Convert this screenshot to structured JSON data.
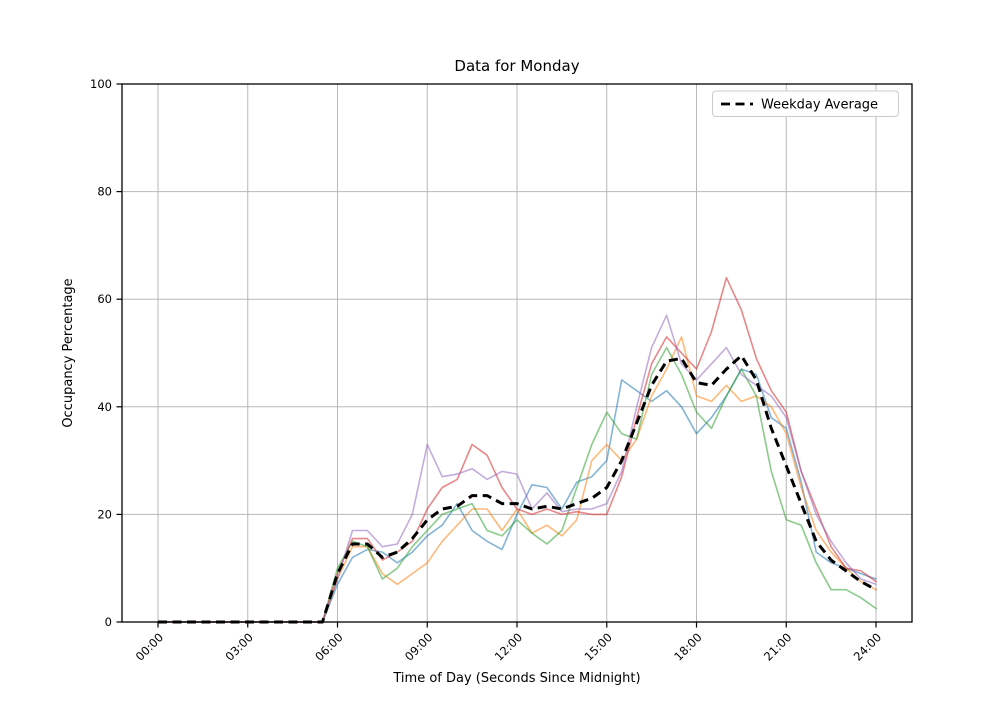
{
  "window": {
    "background": "#ffffff"
  },
  "chart_data": {
    "type": "line",
    "title": "Data for Monday",
    "xlabel": "Time of Day (Seconds Since Midnight)",
    "ylabel": "Occupancy Percentage",
    "ylim": [
      0,
      100
    ],
    "xlim_hours": [
      0,
      24
    ],
    "grid": true,
    "grid_color": "#b8b8b8",
    "spine_color": "#000000",
    "y_ticks": [
      0,
      20,
      40,
      60,
      80,
      100
    ],
    "x_tick_hours": [
      0,
      3,
      6,
      9,
      12,
      15,
      18,
      21,
      24
    ],
    "x_tick_labels": [
      "00:00",
      "03:00",
      "06:00",
      "09:00",
      "12:00",
      "15:00",
      "18:00",
      "21:00",
      "24:00"
    ],
    "sample_interval_hours": 0.5,
    "legend": {
      "label": "Weekday Average",
      "position": "upper right"
    },
    "series": [
      {
        "name": "line-1",
        "color": "#1f77b4",
        "alpha": 0.55,
        "width": 1.6,
        "values": [
          0,
          0,
          0,
          0,
          0,
          0,
          0,
          0,
          0,
          0,
          0,
          0,
          7,
          12,
          13.5,
          13,
          11,
          13,
          16,
          18,
          22,
          17,
          15,
          13.5,
          20,
          25.5,
          25,
          21,
          26,
          27,
          30,
          45,
          43,
          41,
          43,
          40,
          35,
          38,
          42,
          47,
          46,
          38,
          36,
          26,
          13,
          11,
          10,
          9,
          8
        ]
      },
      {
        "name": "line-2",
        "color": "#ff7f0e",
        "alpha": 0.55,
        "width": 1.6,
        "values": [
          0,
          0,
          0,
          0,
          0,
          0,
          0,
          0,
          0,
          0,
          0,
          0,
          8,
          14,
          14,
          9,
          7,
          9,
          11,
          15,
          18,
          21,
          21,
          17,
          21,
          16.5,
          18,
          16,
          19,
          30,
          33,
          30,
          34,
          42,
          47,
          53,
          42,
          41,
          44,
          41,
          42,
          40,
          35,
          25,
          17,
          13,
          10,
          7.5,
          6
        ]
      },
      {
        "name": "line-3",
        "color": "#2ca02c",
        "alpha": 0.55,
        "width": 1.6,
        "values": [
          0,
          0,
          0,
          0,
          0,
          0,
          0,
          0,
          0,
          0,
          0,
          0,
          10,
          15,
          14,
          8,
          10,
          14,
          17,
          20,
          21,
          22,
          17,
          16,
          19,
          16.5,
          14.5,
          17,
          25,
          33,
          39,
          35,
          34,
          46,
          51,
          46,
          39,
          36,
          42,
          47,
          42,
          28,
          19,
          18,
          11,
          6,
          6,
          4.5,
          2.5
        ]
      },
      {
        "name": "line-4",
        "color": "#d62728",
        "alpha": 0.55,
        "width": 1.6,
        "values": [
          0,
          0,
          0,
          0,
          0,
          0,
          0,
          0,
          0,
          0,
          0,
          0,
          9,
          15.5,
          15.5,
          11.5,
          13,
          15,
          21,
          25,
          26.5,
          33,
          31,
          25,
          21,
          20,
          21,
          20,
          20.5,
          20,
          20,
          27,
          38,
          48,
          53,
          50,
          47,
          54,
          64,
          58,
          49,
          43,
          39,
          28,
          21,
          14,
          10,
          9.5,
          7.5
        ]
      },
      {
        "name": "line-5",
        "color": "#9467bd",
        "alpha": 0.55,
        "width": 1.6,
        "values": [
          0,
          0,
          0,
          0,
          0,
          0,
          0,
          0,
          0,
          0,
          0,
          0,
          8,
          17,
          17,
          14,
          14.5,
          20,
          33,
          27,
          27.5,
          28.5,
          26.5,
          28,
          27.5,
          21,
          24,
          20.5,
          21,
          21,
          22,
          28,
          40,
          51,
          57,
          48,
          45,
          48,
          51,
          46,
          44,
          42,
          38,
          28,
          20,
          15,
          11,
          8,
          7
        ]
      }
    ],
    "average": {
      "name": "Weekday Average",
      "color": "#000000",
      "dash": [
        9,
        5.5
      ],
      "width": 3,
      "values": [
        0,
        0,
        0,
        0,
        0,
        0,
        0,
        0,
        0,
        0,
        0,
        0,
        9,
        14.5,
        14.5,
        12,
        13,
        15.5,
        19,
        21,
        21.5,
        23.5,
        23.5,
        22,
        22,
        21,
        21.5,
        21,
        22,
        23,
        25,
        30,
        37,
        44,
        48.5,
        49,
        44.5,
        44,
        47,
        49.5,
        45,
        36,
        29,
        22,
        15,
        11.5,
        9.5,
        7.5,
        6
      ]
    }
  }
}
